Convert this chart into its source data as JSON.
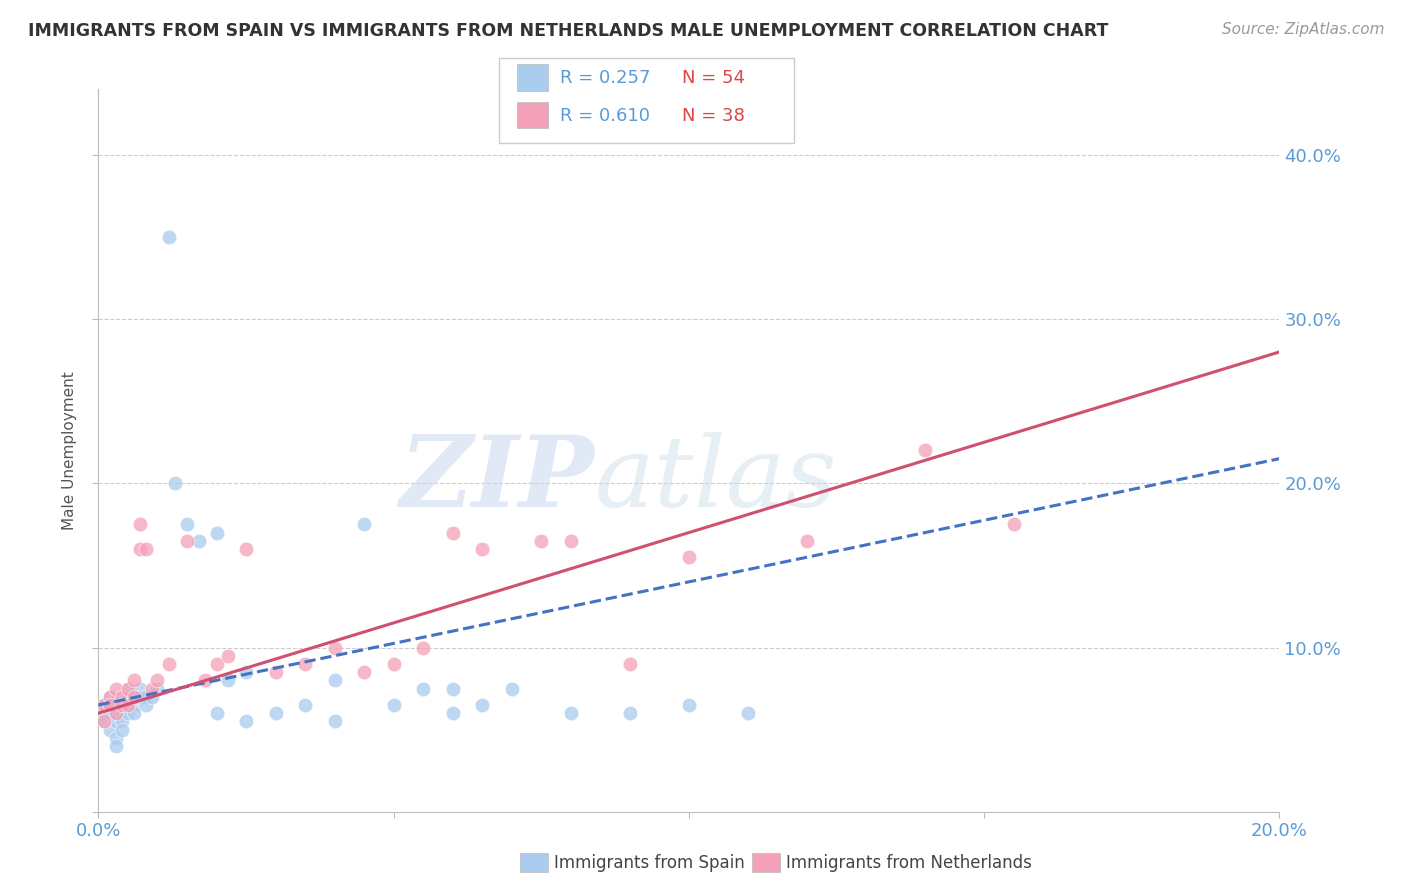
{
  "title": "IMMIGRANTS FROM SPAIN VS IMMIGRANTS FROM NETHERLANDS MALE UNEMPLOYMENT CORRELATION CHART",
  "source": "Source: ZipAtlas.com",
  "ylabel": "Male Unemployment",
  "xlim": [
    0.0,
    0.2
  ],
  "ylim": [
    0.0,
    0.44
  ],
  "xticks": [
    0.0,
    0.05,
    0.1,
    0.15,
    0.2
  ],
  "yticks": [
    0.0,
    0.1,
    0.2,
    0.3,
    0.4
  ],
  "background_color": "#ffffff",
  "grid_color": "#cccccc",
  "axis_color": "#bbbbbb",
  "label_color": "#5b9bd5",
  "title_color": "#333333",
  "series1_name": "Immigrants from Spain",
  "series1_color": "#aaccee",
  "series1_line_color": "#4472c4",
  "series1_R": 0.257,
  "series1_N": 54,
  "series2_name": "Immigrants from Netherlands",
  "series2_color": "#f4a0b8",
  "series2_line_color": "#d05070",
  "series2_R": 0.61,
  "series2_N": 38,
  "spain_x": [
    0.001,
    0.001,
    0.001,
    0.002,
    0.002,
    0.002,
    0.002,
    0.003,
    0.003,
    0.003,
    0.003,
    0.003,
    0.004,
    0.004,
    0.004,
    0.004,
    0.004,
    0.005,
    0.005,
    0.005,
    0.005,
    0.006,
    0.006,
    0.006,
    0.007,
    0.007,
    0.008,
    0.008,
    0.009,
    0.01,
    0.012,
    0.013,
    0.015,
    0.017,
    0.02,
    0.022,
    0.025,
    0.03,
    0.035,
    0.04,
    0.045,
    0.05,
    0.055,
    0.06,
    0.065,
    0.07,
    0.08,
    0.09,
    0.1,
    0.11,
    0.02,
    0.025,
    0.04,
    0.06
  ],
  "spain_y": [
    0.065,
    0.06,
    0.055,
    0.07,
    0.065,
    0.06,
    0.05,
    0.065,
    0.06,
    0.055,
    0.045,
    0.04,
    0.07,
    0.065,
    0.06,
    0.055,
    0.05,
    0.075,
    0.07,
    0.065,
    0.06,
    0.07,
    0.065,
    0.06,
    0.075,
    0.07,
    0.07,
    0.065,
    0.07,
    0.075,
    0.35,
    0.2,
    0.175,
    0.165,
    0.17,
    0.08,
    0.085,
    0.06,
    0.065,
    0.08,
    0.175,
    0.065,
    0.075,
    0.075,
    0.065,
    0.075,
    0.06,
    0.06,
    0.065,
    0.06,
    0.06,
    0.055,
    0.055,
    0.06
  ],
  "netherlands_x": [
    0.001,
    0.001,
    0.002,
    0.002,
    0.003,
    0.003,
    0.004,
    0.004,
    0.005,
    0.005,
    0.006,
    0.006,
    0.007,
    0.007,
    0.008,
    0.009,
    0.01,
    0.012,
    0.015,
    0.018,
    0.02,
    0.022,
    0.025,
    0.03,
    0.035,
    0.04,
    0.045,
    0.05,
    0.055,
    0.06,
    0.065,
    0.075,
    0.08,
    0.09,
    0.1,
    0.12,
    0.14,
    0.155
  ],
  "netherlands_y": [
    0.065,
    0.055,
    0.07,
    0.065,
    0.075,
    0.06,
    0.07,
    0.065,
    0.075,
    0.065,
    0.08,
    0.07,
    0.175,
    0.16,
    0.16,
    0.075,
    0.08,
    0.09,
    0.165,
    0.08,
    0.09,
    0.095,
    0.16,
    0.085,
    0.09,
    0.1,
    0.085,
    0.09,
    0.1,
    0.17,
    0.16,
    0.165,
    0.165,
    0.09,
    0.155,
    0.165,
    0.22,
    0.175
  ],
  "watermark_zip": "ZIP",
  "watermark_atlas": "atlas",
  "legend_box_color_spain": "#aaccee",
  "legend_box_color_netherlands": "#f4a0b8",
  "spain_line_intercept": 0.065,
  "spain_line_slope": 0.75,
  "neth_line_intercept": 0.06,
  "neth_line_slope": 1.1
}
